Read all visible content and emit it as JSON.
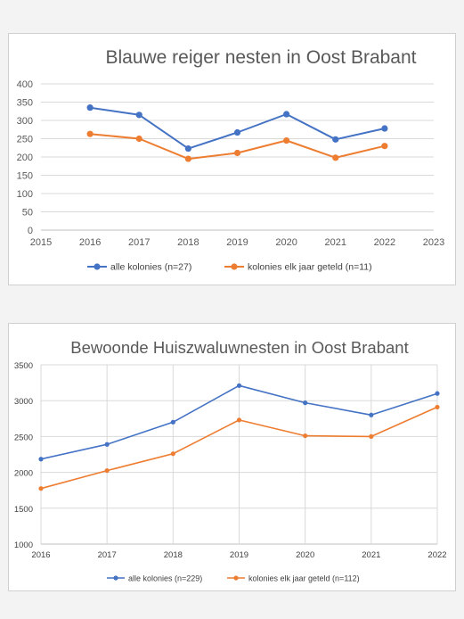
{
  "chart_data": [
    {
      "type": "scatter",
      "title": "Blauwe reiger nesten in Oost Brabant",
      "xlim": [
        2015,
        2023
      ],
      "ylim": [
        0,
        400
      ],
      "x_ticks": [
        "2015",
        "2016",
        "2017",
        "2018",
        "2019",
        "2020",
        "2021",
        "2022",
        "2023"
      ],
      "y_ticks": [
        "0",
        "50",
        "100",
        "150",
        "200",
        "250",
        "300",
        "350",
        "400"
      ],
      "x": [
        2016,
        2017,
        2018,
        2019,
        2020,
        2021,
        2022
      ],
      "grid": "horizontal",
      "legend_position": "bottom",
      "series": [
        {
          "name": "alle kolonies (n=27)",
          "color": "#4472c4",
          "values": [
            335,
            315,
            223,
            267,
            317,
            248,
            278
          ]
        },
        {
          "name": "kolonies elk jaar geteld (n=11)",
          "color": "#ed7d31",
          "values": [
            263,
            250,
            195,
            211,
            245,
            198,
            230
          ]
        }
      ]
    },
    {
      "type": "line",
      "title": "Bewoonde Huiszwaluwnesten in Oost Brabant",
      "xlim": [
        2016,
        2022
      ],
      "ylim": [
        1000,
        3500
      ],
      "x_ticks": [
        "2016",
        "2017",
        "2018",
        "2019",
        "2020",
        "2021",
        "2022"
      ],
      "y_ticks": [
        "1000",
        "1500",
        "2000",
        "2500",
        "3000",
        "3500"
      ],
      "x": [
        2016,
        2017,
        2018,
        2019,
        2020,
        2021,
        2022
      ],
      "grid": "both",
      "legend_position": "bottom",
      "series": [
        {
          "name": "alle kolonies (n=229)",
          "color": "#4472c4",
          "values": [
            2185,
            2390,
            2700,
            3210,
            2970,
            2800,
            3100
          ]
        },
        {
          "name": "kolonies elk jaar geteld (n=112)",
          "color": "#ed7d31",
          "values": [
            1775,
            2025,
            2260,
            2730,
            2510,
            2500,
            2910
          ]
        }
      ]
    }
  ]
}
